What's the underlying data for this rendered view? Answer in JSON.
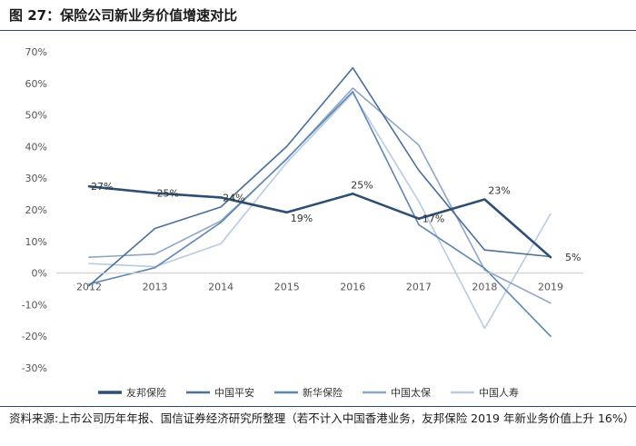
{
  "figure_title": "图 27：保险公司新业务价值增速对比",
  "source_note": "资料来源:上市公司历年年报、国信证券经济研究所整理（若不计入中国香港业务，友邦保险 2019 年新业务价值上升 16%）",
  "chart_data": {
    "type": "line",
    "title": "",
    "xlabel": "",
    "ylabel": "",
    "categories": [
      "2012",
      "2013",
      "2014",
      "2015",
      "2016",
      "2017",
      "2018",
      "2019"
    ],
    "ylim": [
      -30,
      70
    ],
    "yticks": [
      70,
      60,
      50,
      40,
      30,
      20,
      10,
      0,
      -10,
      -20,
      -30
    ],
    "ytick_labels": [
      "70%",
      "60%",
      "50%",
      "40%",
      "30%",
      "20%",
      "10%",
      "0%",
      "-10%",
      "-20%",
      "-30%"
    ],
    "grid": false,
    "legend_position": "bottom",
    "series": [
      {
        "name": "友邦保险",
        "color": "#2f4f73",
        "width": 2.6,
        "values": [
          27.4,
          25.3,
          23.9,
          19.2,
          25.1,
          17.2,
          23.3,
          5.0
        ],
        "labels": [
          "27%",
          "25%",
          "24%",
          "19%",
          "25%",
          "17%",
          "23%",
          "5%"
        ]
      },
      {
        "name": "中国平安",
        "color": "#4a6f98",
        "width": 1.6,
        "values": [
          -4.0,
          14.1,
          20.9,
          40.1,
          64.9,
          32.5,
          7.3,
          5.2
        ]
      },
      {
        "name": "新华保险",
        "color": "#5f86b4",
        "width": 1.6,
        "values": [
          -3.5,
          1.7,
          16.0,
          36.2,
          57.4,
          15.3,
          1.5,
          -20.0
        ]
      },
      {
        "name": "中国太保",
        "color": "#8ea6c6",
        "width": 1.6,
        "values": [
          5.0,
          6.0,
          16.5,
          36.0,
          58.5,
          40.5,
          1.0,
          -9.5
        ]
      },
      {
        "name": "中国人寿",
        "color": "#b9cbe0",
        "width": 1.6,
        "values": [
          3.0,
          2.0,
          9.3,
          35.0,
          56.9,
          22.7,
          -17.5,
          18.7
        ]
      }
    ]
  }
}
